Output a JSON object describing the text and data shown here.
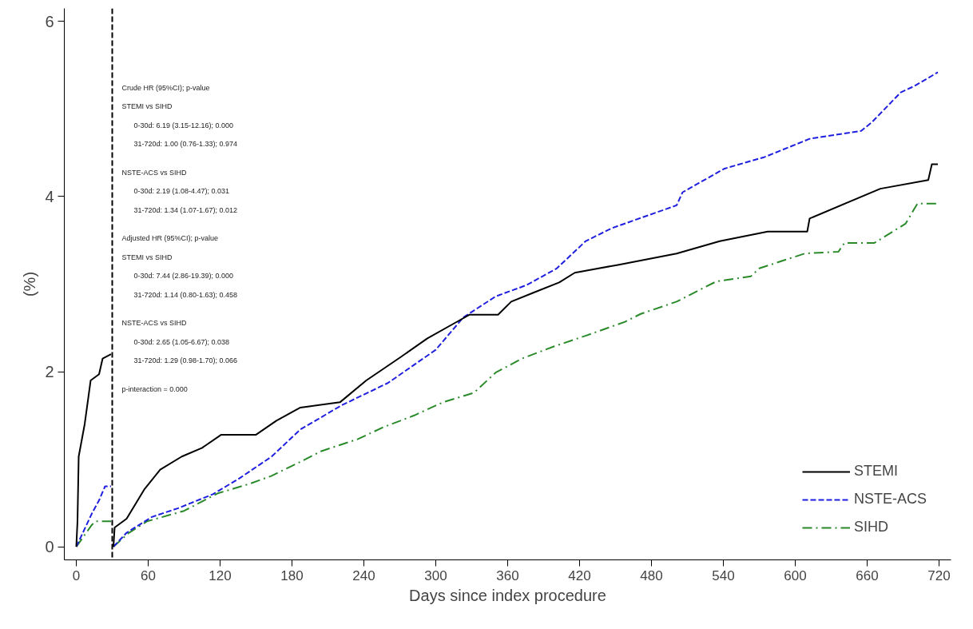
{
  "chart_data": {
    "type": "line",
    "xlabel": "Days since index procedure",
    "ylabel": "(%)",
    "xlim": [
      -10,
      730
    ],
    "ylim": [
      -0.15,
      6.15
    ],
    "xticks": [
      0,
      60,
      120,
      180,
      240,
      300,
      360,
      420,
      480,
      540,
      600,
      660,
      720
    ],
    "yticks": [
      0,
      2,
      4,
      6
    ],
    "grid": false,
    "legend": "bottom right",
    "ref_lines": [
      {
        "axis": "x",
        "value": 30,
        "color": "#000000",
        "line_style": "dashed"
      }
    ],
    "annotations": [
      "Crude HR (95%CI); p-value",
      "STEMI vs SIHD",
      "0-30d: 6.19 (3.15-12.16); 0.000",
      "31-720d: 1.00 (0.76-1.33); 0.974",
      "NSTE-ACS vs SIHD",
      "0-30d: 2.19 (1.08-4.47); 0.031",
      "31-720d: 1.34 (1.07-1.67); 0.012",
      "Adjusted HR (95%CI); p-value",
      "STEMI vs SIHD",
      "0-30d: 7.44 (2.86-19.39); 0.000",
      "31-720d: 1.14 (0.80-1.63); 0.458",
      "NSTE-ACS vs SIHD",
      "0-30d: 2.65 (1.05-6.67); 0.038",
      "31-720d: 1.29 (0.98-1.70); 0.066",
      "p-interaction = 0.000"
    ],
    "series": [
      {
        "name": "STEMI",
        "color": "#000000",
        "line_style": "solid",
        "x": [
          0,
          1,
          2,
          7,
          12,
          19,
          22,
          29,
          30,
          31,
          32,
          42,
          57,
          70,
          88,
          105,
          121,
          150,
          167,
          187,
          220,
          242,
          270,
          293,
          319,
          328,
          352,
          363,
          381,
          403,
          416,
          436,
          452,
          501,
          537,
          577,
          610,
          612,
          671,
          711,
          714,
          719
        ],
        "values": [
          0,
          0.29,
          1.03,
          1.4,
          1.9,
          1.97,
          2.15,
          2.2,
          null,
          0,
          0.22,
          0.32,
          0.66,
          0.88,
          1.03,
          1.13,
          1.28,
          1.28,
          1.44,
          1.59,
          1.65,
          1.9,
          2.16,
          2.38,
          2.58,
          2.65,
          2.65,
          2.8,
          2.9,
          3.02,
          3.13,
          3.18,
          3.22,
          3.35,
          3.49,
          3.6,
          3.6,
          3.75,
          4.09,
          4.19,
          4.37,
          4.37
        ]
      },
      {
        "name": "NSTE-ACS",
        "color": "#1f1fe0",
        "line_style": "dashed",
        "x": [
          0,
          13,
          19,
          24,
          29,
          30,
          31,
          42,
          63,
          85,
          114,
          136,
          163,
          187,
          222,
          260,
          300,
          323,
          350,
          376,
          401,
          425,
          447,
          501,
          506,
          541,
          574,
          612,
          655,
          664,
          688,
          699,
          719
        ],
        "values": [
          0,
          0.38,
          0.53,
          0.69,
          0.69,
          null,
          0,
          0.16,
          0.34,
          0.44,
          0.6,
          0.78,
          1.03,
          1.34,
          1.62,
          1.87,
          2.25,
          2.62,
          2.86,
          2.99,
          3.18,
          3.49,
          3.64,
          3.9,
          4.05,
          4.32,
          4.45,
          4.66,
          4.75,
          4.85,
          5.19,
          5.26,
          5.42
        ]
      },
      {
        "name": "SIHD",
        "color": "#2a8a2a",
        "line_style": "dashdot",
        "x": [
          0,
          13,
          16,
          29,
          30,
          31,
          44,
          59,
          90,
          118,
          145,
          163,
          187,
          204,
          235,
          257,
          282,
          306,
          332,
          350,
          372,
          399,
          425,
          458,
          471,
          501,
          534,
          563,
          570,
          608,
          636,
          641,
          666,
          692,
          702,
          719
        ],
        "values": [
          0,
          0.25,
          0.29,
          0.29,
          null,
          0,
          0.16,
          0.29,
          0.41,
          0.61,
          0.72,
          0.81,
          0.97,
          1.09,
          1.23,
          1.37,
          1.5,
          1.65,
          1.76,
          1.99,
          2.15,
          2.29,
          2.41,
          2.57,
          2.66,
          2.8,
          3.03,
          3.09,
          3.18,
          3.35,
          3.37,
          3.47,
          3.47,
          3.69,
          3.92,
          3.92
        ]
      }
    ]
  }
}
